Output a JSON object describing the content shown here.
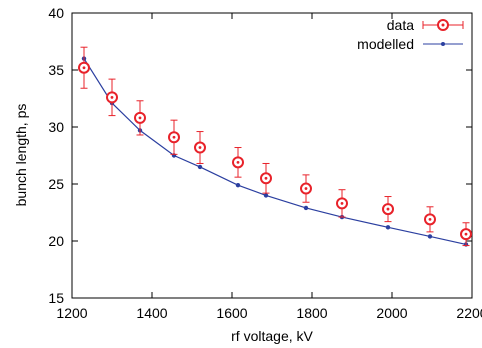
{
  "chart_data": {
    "type": "scatter",
    "xlabel": "rf voltage, kV",
    "ylabel": "bunch length, ps",
    "xlim": [
      1200,
      2200
    ],
    "ylim": [
      15,
      40
    ],
    "x_ticks": [
      1200,
      1400,
      1600,
      1800,
      2000,
      2200
    ],
    "y_ticks": [
      15,
      20,
      25,
      30,
      35,
      40
    ],
    "grid": false,
    "legend_position": "top-right",
    "series": [
      {
        "name": "data",
        "style": "points-with-errorbars",
        "color": "#e8222a",
        "x": [
          1230,
          1300,
          1370,
          1455,
          1520,
          1615,
          1685,
          1785,
          1875,
          1990,
          2095,
          2185
        ],
        "y": [
          35.2,
          32.6,
          30.8,
          29.1,
          28.2,
          26.9,
          25.5,
          24.6,
          23.3,
          22.8,
          21.9,
          20.6
        ],
        "err": [
          1.8,
          1.6,
          1.5,
          1.5,
          1.4,
          1.3,
          1.3,
          1.2,
          1.2,
          1.1,
          1.1,
          1.0
        ]
      },
      {
        "name": "modelled",
        "style": "line-with-points",
        "color": "#2b3fa0",
        "x": [
          1230,
          1300,
          1370,
          1455,
          1520,
          1615,
          1685,
          1785,
          1875,
          1990,
          2095,
          2185
        ],
        "y": [
          36.0,
          32.1,
          29.7,
          27.5,
          26.5,
          24.9,
          24.0,
          22.9,
          22.1,
          21.2,
          20.4,
          19.7
        ]
      }
    ]
  }
}
